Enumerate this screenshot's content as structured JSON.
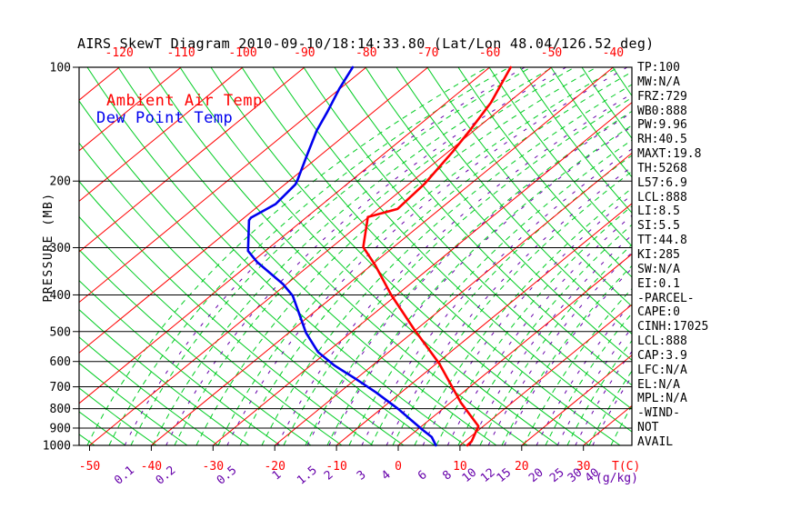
{
  "title": "AIRS SkewT Diagram 2010-09-10/18:14:33.80 (Lat/Lon 48.04/126.52 deg)",
  "legend": {
    "ambient": {
      "label": "Ambient Air Temp",
      "color": "#ff0000"
    },
    "dewpoint": {
      "label": "Dew Point Temp",
      "color": "#0000ee"
    }
  },
  "stats_panel": {
    "lines": [
      "TP:100",
      "MW:N/A",
      "FRZ:729",
      "WB0:888",
      "PW:9.96",
      "RH:40.5",
      "MAXT:19.8",
      "TH:5268",
      "L57:6.9",
      "LCL:888",
      "LI:8.5",
      "SI:5.5",
      "TT:44.8",
      "KI:285",
      "SW:N/A",
      "EI:0.1",
      "-PARCEL-",
      "CAPE:0",
      "CINH:17025",
      "LCL:888",
      "CAP:3.9",
      "LFC:N/A",
      "EL:N/A",
      "MPL:N/A",
      "-WIND-",
      "NOT",
      "AVAIL"
    ]
  },
  "chart_data": {
    "type": "line",
    "title": "AIRS SkewT Diagram 2010-09-10/18:14:33.80 (Lat/Lon 48.04/126.52 deg)",
    "y_axis": {
      "label": "PRESSURE (MB)",
      "scale": "log",
      "range_mb": [
        100,
        1000
      ],
      "ticks_mb": [
        100,
        200,
        300,
        400,
        500,
        600,
        700,
        800,
        900,
        1000
      ]
    },
    "x_axis": {
      "unit_label": "T(C)",
      "top_ticks_C": [
        -120,
        -110,
        -100,
        -90,
        -80,
        -70,
        -60,
        -50,
        -40
      ],
      "bottom_ticks_C": [
        -50,
        -40,
        -30,
        -20,
        -10,
        0,
        10,
        20,
        30
      ]
    },
    "mixing_ratio_axis": {
      "unit_label": "(g/kg)",
      "ticks_gkg": [
        0.1,
        0.2,
        0.5,
        1,
        1.5,
        2,
        3,
        4,
        6,
        8,
        10,
        12,
        15,
        20,
        25,
        30,
        40
      ]
    },
    "grid": {
      "isotherm_color": "#ff0000",
      "isotherm_step_C": 10,
      "adiabat_color": "#00cc22",
      "mixing_ratio_color": "#6600aa",
      "pressure_line_color": "#000000",
      "background": "#ffffff"
    },
    "series": [
      {
        "name": "Ambient Air Temp",
        "color": "#ff0000",
        "points_P_T": [
          [
            100,
            -56.6
          ],
          [
            124,
            -52.8
          ],
          [
            147,
            -50.7
          ],
          [
            167,
            -49.3
          ],
          [
            203,
            -47.5
          ],
          [
            237,
            -46.9
          ],
          [
            249,
            -50.1
          ],
          [
            299,
            -44.9
          ],
          [
            333,
            -39.5
          ],
          [
            400,
            -30.9
          ],
          [
            494,
            -20.3
          ],
          [
            607,
            -9.6
          ],
          [
            771,
            1.7
          ],
          [
            890,
            9.2
          ],
          [
            976,
            11.1
          ],
          [
            1000,
            11.2
          ]
        ]
      },
      {
        "name": "Dew Point Temp",
        "color": "#0000ee",
        "points_P_T": [
          [
            100,
            -82.2
          ],
          [
            114,
            -80.1
          ],
          [
            131,
            -77.5
          ],
          [
            147,
            -75.5
          ],
          [
            170,
            -72.3
          ],
          [
            198,
            -68.9
          ],
          [
            204,
            -68.3
          ],
          [
            230,
            -67.6
          ],
          [
            250,
            -68.9
          ],
          [
            254,
            -68.7
          ],
          [
            306,
            -62.8
          ],
          [
            327,
            -59.2
          ],
          [
            375,
            -50.5
          ],
          [
            402,
            -46.7
          ],
          [
            504,
            -37.2
          ],
          [
            566,
            -31.5
          ],
          [
            615,
            -26.1
          ],
          [
            671,
            -19.6
          ],
          [
            724,
            -14.1
          ],
          [
            800,
            -7.3
          ],
          [
            910,
            0.9
          ],
          [
            951,
            3.8
          ],
          [
            1000,
            6.1
          ]
        ]
      }
    ]
  }
}
